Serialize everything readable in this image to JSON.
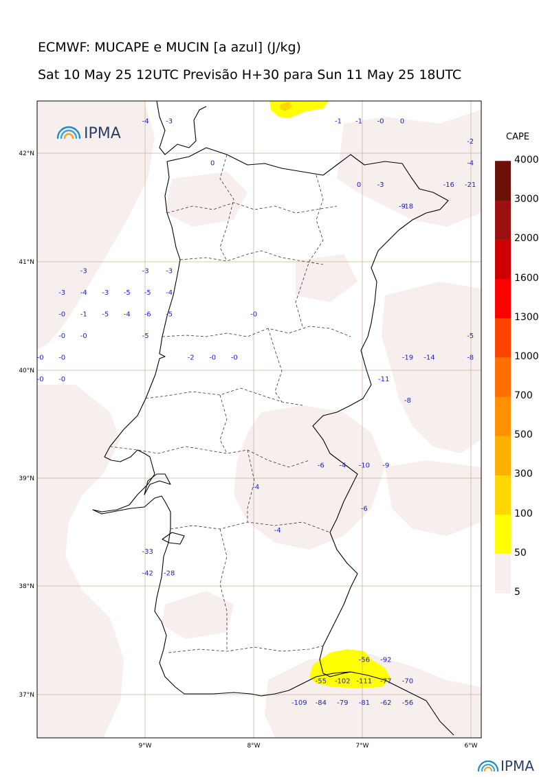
{
  "title": "ECMWF: MUCAPE e MUCIN [a azul] (J/kg)",
  "subtitle": "Sat 10 May 25 12UTC Previsão H+30 para Sun 11 May 25 18UTC",
  "logo_text": "IPMA",
  "footer_logo_text": "IPMA",
  "colorbar": {
    "title": "CAPE",
    "levels": [
      "5",
      "50",
      "100",
      "300",
      "500",
      "700",
      "1000",
      "1300",
      "1600",
      "2000",
      "3000",
      "4000"
    ],
    "colors": [
      "#f7eeee",
      "#ffff00",
      "#ffd700",
      "#ffb000",
      "#ff9100",
      "#ff7000",
      "#ff4400",
      "#ff0000",
      "#cc0000",
      "#9b1010",
      "#7a0030"
    ],
    "top_color": "#6b1208"
  },
  "axes": {
    "x_ticks": [
      "9°W",
      "8°W",
      "7°W",
      "6°W"
    ],
    "y_ticks": [
      "42°N",
      "41°N",
      "40°N",
      "39°N",
      "38°N",
      "37°N"
    ],
    "lon_range": [
      -10.0,
      -5.9
    ],
    "lat_range": [
      36.6,
      42.5
    ]
  },
  "cin_labels": [
    {
      "lon": -9.0,
      "lat": 42.32,
      "text": "-4"
    },
    {
      "lon": -8.78,
      "lat": 42.32,
      "text": "-3"
    },
    {
      "lon": -7.22,
      "lat": 42.32,
      "text": "-1"
    },
    {
      "lon": -7.03,
      "lat": 42.32,
      "text": "-1"
    },
    {
      "lon": -6.83,
      "lat": 42.32,
      "text": "-0"
    },
    {
      "lon": -6.63,
      "lat": 42.32,
      "text": "0"
    },
    {
      "lon": -6.0,
      "lat": 42.13,
      "text": "-2"
    },
    {
      "lon": -8.38,
      "lat": 41.93,
      "text": "0"
    },
    {
      "lon": -6.0,
      "lat": 41.93,
      "text": "-4"
    },
    {
      "lon": -7.03,
      "lat": 41.73,
      "text": "0"
    },
    {
      "lon": -6.83,
      "lat": 41.73,
      "text": "-3"
    },
    {
      "lon": -6.2,
      "lat": 41.73,
      "text": "-16"
    },
    {
      "lon": -6.0,
      "lat": 41.73,
      "text": "-21"
    },
    {
      "lon": -6.63,
      "lat": 41.53,
      "text": "-9"
    },
    {
      "lon": -6.58,
      "lat": 41.53,
      "text": "-18"
    },
    {
      "lon": -9.57,
      "lat": 40.93,
      "text": "-3"
    },
    {
      "lon": -9.0,
      "lat": 40.93,
      "text": "-3"
    },
    {
      "lon": -8.78,
      "lat": 40.93,
      "text": "-3"
    },
    {
      "lon": -9.77,
      "lat": 40.73,
      "text": "-3"
    },
    {
      "lon": -9.57,
      "lat": 40.73,
      "text": "-4"
    },
    {
      "lon": -9.37,
      "lat": 40.73,
      "text": "-3"
    },
    {
      "lon": -9.17,
      "lat": 40.73,
      "text": "-5"
    },
    {
      "lon": -8.98,
      "lat": 40.73,
      "text": "-5"
    },
    {
      "lon": -8.78,
      "lat": 40.73,
      "text": "-4"
    },
    {
      "lon": -9.77,
      "lat": 40.53,
      "text": "-0"
    },
    {
      "lon": -9.57,
      "lat": 40.53,
      "text": "-1"
    },
    {
      "lon": -9.37,
      "lat": 40.53,
      "text": "-5"
    },
    {
      "lon": -9.17,
      "lat": 40.53,
      "text": "-4"
    },
    {
      "lon": -8.98,
      "lat": 40.53,
      "text": "-6"
    },
    {
      "lon": -8.78,
      "lat": 40.53,
      "text": "-5"
    },
    {
      "lon": -8.0,
      "lat": 40.53,
      "text": "-0"
    },
    {
      "lon": -9.77,
      "lat": 40.33,
      "text": "-0"
    },
    {
      "lon": -9.57,
      "lat": 40.33,
      "text": "-0"
    },
    {
      "lon": -9.0,
      "lat": 40.33,
      "text": "-5"
    },
    {
      "lon": -6.0,
      "lat": 40.33,
      "text": "-5"
    },
    {
      "lon": -9.97,
      "lat": 40.13,
      "text": "-0"
    },
    {
      "lon": -9.77,
      "lat": 40.13,
      "text": "-0"
    },
    {
      "lon": -8.58,
      "lat": 40.13,
      "text": "-2"
    },
    {
      "lon": -8.38,
      "lat": 40.13,
      "text": "-0"
    },
    {
      "lon": -8.18,
      "lat": 40.13,
      "text": "-0"
    },
    {
      "lon": -6.58,
      "lat": 40.13,
      "text": "-19"
    },
    {
      "lon": -6.38,
      "lat": 40.13,
      "text": "-14"
    },
    {
      "lon": -6.0,
      "lat": 40.13,
      "text": "-8"
    },
    {
      "lon": -9.97,
      "lat": 39.93,
      "text": "-0"
    },
    {
      "lon": -9.77,
      "lat": 39.93,
      "text": "-0"
    },
    {
      "lon": -6.8,
      "lat": 39.93,
      "text": "-11"
    },
    {
      "lon": -6.58,
      "lat": 39.73,
      "text": "-8"
    },
    {
      "lon": -7.38,
      "lat": 39.13,
      "text": "-6"
    },
    {
      "lon": -7.18,
      "lat": 39.13,
      "text": "-4"
    },
    {
      "lon": -6.98,
      "lat": 39.13,
      "text": "-10"
    },
    {
      "lon": -6.78,
      "lat": 39.13,
      "text": "-9"
    },
    {
      "lon": -7.98,
      "lat": 38.93,
      "text": "-4"
    },
    {
      "lon": -6.98,
      "lat": 38.73,
      "text": "-6"
    },
    {
      "lon": -7.78,
      "lat": 38.53,
      "text": "-4"
    },
    {
      "lon": -8.98,
      "lat": 38.33,
      "text": "-33"
    },
    {
      "lon": -8.98,
      "lat": 38.13,
      "text": "-42"
    },
    {
      "lon": -8.78,
      "lat": 38.13,
      "text": "-28"
    },
    {
      "lon": -6.98,
      "lat": 37.33,
      "text": "-56"
    },
    {
      "lon": -6.78,
      "lat": 37.33,
      "text": "-92"
    },
    {
      "lon": -7.38,
      "lat": 37.13,
      "text": "-55"
    },
    {
      "lon": -7.18,
      "lat": 37.13,
      "text": "-102"
    },
    {
      "lon": -6.98,
      "lat": 37.13,
      "text": "-111"
    },
    {
      "lon": -6.78,
      "lat": 37.13,
      "text": "-77"
    },
    {
      "lon": -6.58,
      "lat": 37.13,
      "text": "-70"
    },
    {
      "lon": -7.58,
      "lat": 36.93,
      "text": "-109"
    },
    {
      "lon": -7.38,
      "lat": 36.93,
      "text": "-84"
    },
    {
      "lon": -7.18,
      "lat": 36.93,
      "text": "-79"
    },
    {
      "lon": -6.98,
      "lat": 36.93,
      "text": "-81"
    },
    {
      "lon": -6.78,
      "lat": 36.93,
      "text": "-62"
    },
    {
      "lon": -6.58,
      "lat": 36.93,
      "text": "-56"
    }
  ]
}
